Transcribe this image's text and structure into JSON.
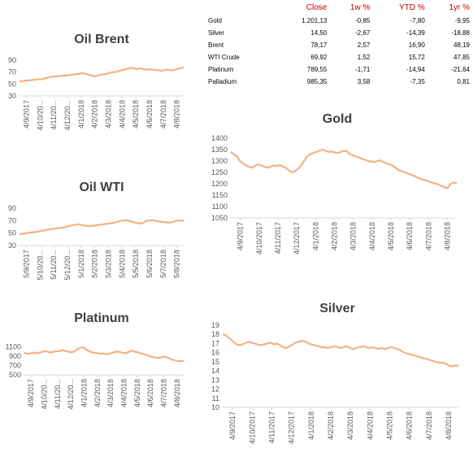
{
  "summary_table": {
    "headers": [
      "",
      "Close",
      "1w %",
      "YTD %",
      "1yr %"
    ],
    "rows": [
      [
        "Gold",
        "1.201,13",
        "-0,85",
        "-7,80",
        "-9,95"
      ],
      [
        "Silver",
        "14,50",
        "-2,67",
        "-14,39",
        "-18,88"
      ],
      [
        "Brent",
        "78,17",
        "2,57",
        "16,90",
        "48,19"
      ],
      [
        "WTI Crude",
        "69,92",
        "1,52",
        "15,72",
        "47,85"
      ],
      [
        "Platinum",
        "789,55",
        "-1,71",
        "-14,94",
        "-21,64"
      ],
      [
        "Palladium",
        "985,35",
        "3,58",
        "-7,35",
        "0,81"
      ]
    ]
  },
  "colors": {
    "line": "#F4B183",
    "text": "#595959",
    "header": "#C00000",
    "axis": "#D9D9D9"
  },
  "chart_data": [
    {
      "id": "brent",
      "type": "line",
      "title": "Oil Brent",
      "x_ticks": [
        "4/9/2017",
        "4/10/20...",
        "4/11/20...",
        "4/12/20...",
        "4/1/2018",
        "4/2/2018",
        "4/3/2018",
        "4/4/2018",
        "4/5/2018",
        "4/6/2018",
        "4/7/2018",
        "4/8/2018"
      ],
      "y_ticks": [
        30,
        50,
        70,
        90
      ],
      "ylim": [
        30,
        90
      ],
      "xlabel": "",
      "ylabel": "",
      "grid": false,
      "series": [
        {
          "values": [
            54,
            55,
            55,
            56,
            56,
            56,
            57,
            57,
            58,
            58,
            58,
            59,
            60,
            61,
            62,
            62,
            63,
            63,
            63,
            64,
            64,
            64,
            65,
            65,
            66,
            66,
            67,
            67,
            68,
            68,
            67,
            66,
            65,
            64,
            63,
            64,
            65,
            66,
            66,
            67,
            68,
            69,
            70,
            70,
            71,
            72,
            73,
            74,
            75,
            76,
            77,
            77,
            76,
            75,
            76,
            76,
            75,
            74,
            74,
            75,
            74,
            74,
            73,
            73,
            72,
            73,
            74,
            74,
            73,
            73,
            74,
            75,
            76,
            77,
            78
          ]
        }
      ]
    },
    {
      "id": "wti",
      "type": "line",
      "title": "Oil WTI",
      "x_ticks": [
        "5/9/2017",
        "5/10/20...",
        "5/11/20...",
        "5/12/20...",
        "5/1/2018",
        "5/2/2018",
        "5/3/2018",
        "5/4/2018",
        "5/5/2018",
        "5/6/2018",
        "5/7/2018",
        "5/8/2018"
      ],
      "y_ticks": [
        30,
        50,
        70,
        90
      ],
      "ylim": [
        30,
        90
      ],
      "xlabel": "",
      "ylabel": "",
      "grid": false,
      "series": [
        {
          "values": [
            48,
            49,
            49,
            50,
            50,
            51,
            51,
            52,
            52,
            53,
            54,
            54,
            55,
            56,
            56,
            57,
            57,
            58,
            58,
            59,
            59,
            60,
            61,
            62,
            63,
            63,
            64,
            64,
            63,
            62,
            62,
            61,
            61,
            62,
            62,
            63,
            63,
            64,
            64,
            65,
            65,
            66,
            66,
            67,
            68,
            69,
            70,
            70,
            71,
            70,
            69,
            68,
            67,
            66,
            66,
            65,
            67,
            69,
            70,
            70,
            71,
            70,
            69,
            69,
            68,
            68,
            67,
            67,
            67,
            68,
            69,
            70,
            70,
            70,
            70
          ]
        }
      ]
    },
    {
      "id": "platinum",
      "type": "line",
      "title": "Platinum",
      "x_ticks": [
        "4/9/2017",
        "4/10/20...",
        "4/11/20...",
        "4/12/20...",
        "4/1/2018",
        "4/2/2018",
        "4/3/2018",
        "4/4/2018",
        "4/5/2018",
        "4/6/2018",
        "4/7/2018",
        "4/8/2018"
      ],
      "y_ticks": [
        500,
        700,
        900,
        1100
      ],
      "ylim": [
        500,
        1300
      ],
      "xlabel": "",
      "ylabel": "",
      "grid": false,
      "series": [
        {
          "values": [
            970,
            960,
            950,
            960,
            970,
            980,
            960,
            970,
            990,
            1000,
            1010,
            990,
            980,
            990,
            1000,
            1010,
            1000,
            1020,
            1030,
            1010,
            1000,
            990,
            980,
            1000,
            1030,
            1060,
            1080,
            1090,
            1070,
            1040,
            1010,
            990,
            980,
            970,
            960,
            950,
            960,
            950,
            940,
            950,
            960,
            970,
            990,
            1000,
            990,
            980,
            970,
            960,
            980,
            1000,
            1020,
            1000,
            990,
            980,
            960,
            950,
            940,
            920,
            900,
            890,
            880,
            870,
            860,
            870,
            880,
            890,
            880,
            860,
            840,
            820,
            810,
            800,
            790,
            800,
            790
          ]
        }
      ]
    },
    {
      "id": "gold",
      "type": "line",
      "title": "Gold",
      "x_ticks": [
        "4/9/2017",
        "4/10/2017",
        "4/11/2017",
        "4/12/2017",
        "4/1/2018",
        "4/2/2018",
        "4/3/2018",
        "4/4/2018",
        "4/5/2018",
        "4/6/2018",
        "4/7/2018",
        "4/8/2018"
      ],
      "y_ticks": [
        1050,
        1100,
        1150,
        1200,
        1250,
        1300,
        1350,
        1400
      ],
      "ylim": [
        1050,
        1400
      ],
      "xlabel": "",
      "ylabel": "",
      "grid": false,
      "series": [
        {
          "values": [
            1340,
            1330,
            1320,
            1300,
            1290,
            1280,
            1275,
            1270,
            1280,
            1285,
            1280,
            1275,
            1270,
            1275,
            1280,
            1278,
            1282,
            1276,
            1270,
            1260,
            1250,
            1255,
            1265,
            1280,
            1300,
            1320,
            1330,
            1335,
            1340,
            1345,
            1350,
            1345,
            1340,
            1342,
            1338,
            1335,
            1340,
            1345,
            1342,
            1330,
            1325,
            1320,
            1315,
            1310,
            1305,
            1300,
            1298,
            1295,
            1300,
            1302,
            1295,
            1290,
            1285,
            1280,
            1270,
            1260,
            1255,
            1250,
            1245,
            1240,
            1235,
            1228,
            1222,
            1218,
            1215,
            1210,
            1205,
            1200,
            1198,
            1190,
            1185,
            1180,
            1200,
            1205,
            1201
          ]
        }
      ]
    },
    {
      "id": "silver",
      "type": "line",
      "title": "Silver",
      "x_ticks": [
        "4/9/2017",
        "4/10/2017",
        "4/11/2017",
        "4/12/2017",
        "4/1/2018",
        "4/2/2018",
        "4/3/2018",
        "4/4/2018",
        "4/5/2018",
        "4/6/2018",
        "4/7/2018",
        "4/8/2018"
      ],
      "y_ticks": [
        10,
        11,
        12,
        13,
        14,
        15,
        16,
        17,
        18,
        19
      ],
      "ylim": [
        10,
        19
      ],
      "xlabel": "",
      "ylabel": "",
      "grid": false,
      "series": [
        {
          "values": [
            18.0,
            17.9,
            17.6,
            17.3,
            17.0,
            16.8,
            16.9,
            17.0,
            17.2,
            17.1,
            17.0,
            16.9,
            16.8,
            16.9,
            17.0,
            17.1,
            16.9,
            17.0,
            16.8,
            16.6,
            16.5,
            16.7,
            16.9,
            17.1,
            17.2,
            17.3,
            17.2,
            17.0,
            16.9,
            16.8,
            16.7,
            16.6,
            16.6,
            16.5,
            16.6,
            16.7,
            16.6,
            16.5,
            16.6,
            16.7,
            16.5,
            16.4,
            16.5,
            16.6,
            16.7,
            16.6,
            16.5,
            16.6,
            16.5,
            16.4,
            16.5,
            16.4,
            16.5,
            16.6,
            16.5,
            16.4,
            16.2,
            16.0,
            15.9,
            15.8,
            15.7,
            15.6,
            15.5,
            15.4,
            15.3,
            15.2,
            15.1,
            15.0,
            14.9,
            14.9,
            14.8,
            14.6,
            14.5,
            14.6,
            14.5
          ]
        }
      ]
    }
  ]
}
